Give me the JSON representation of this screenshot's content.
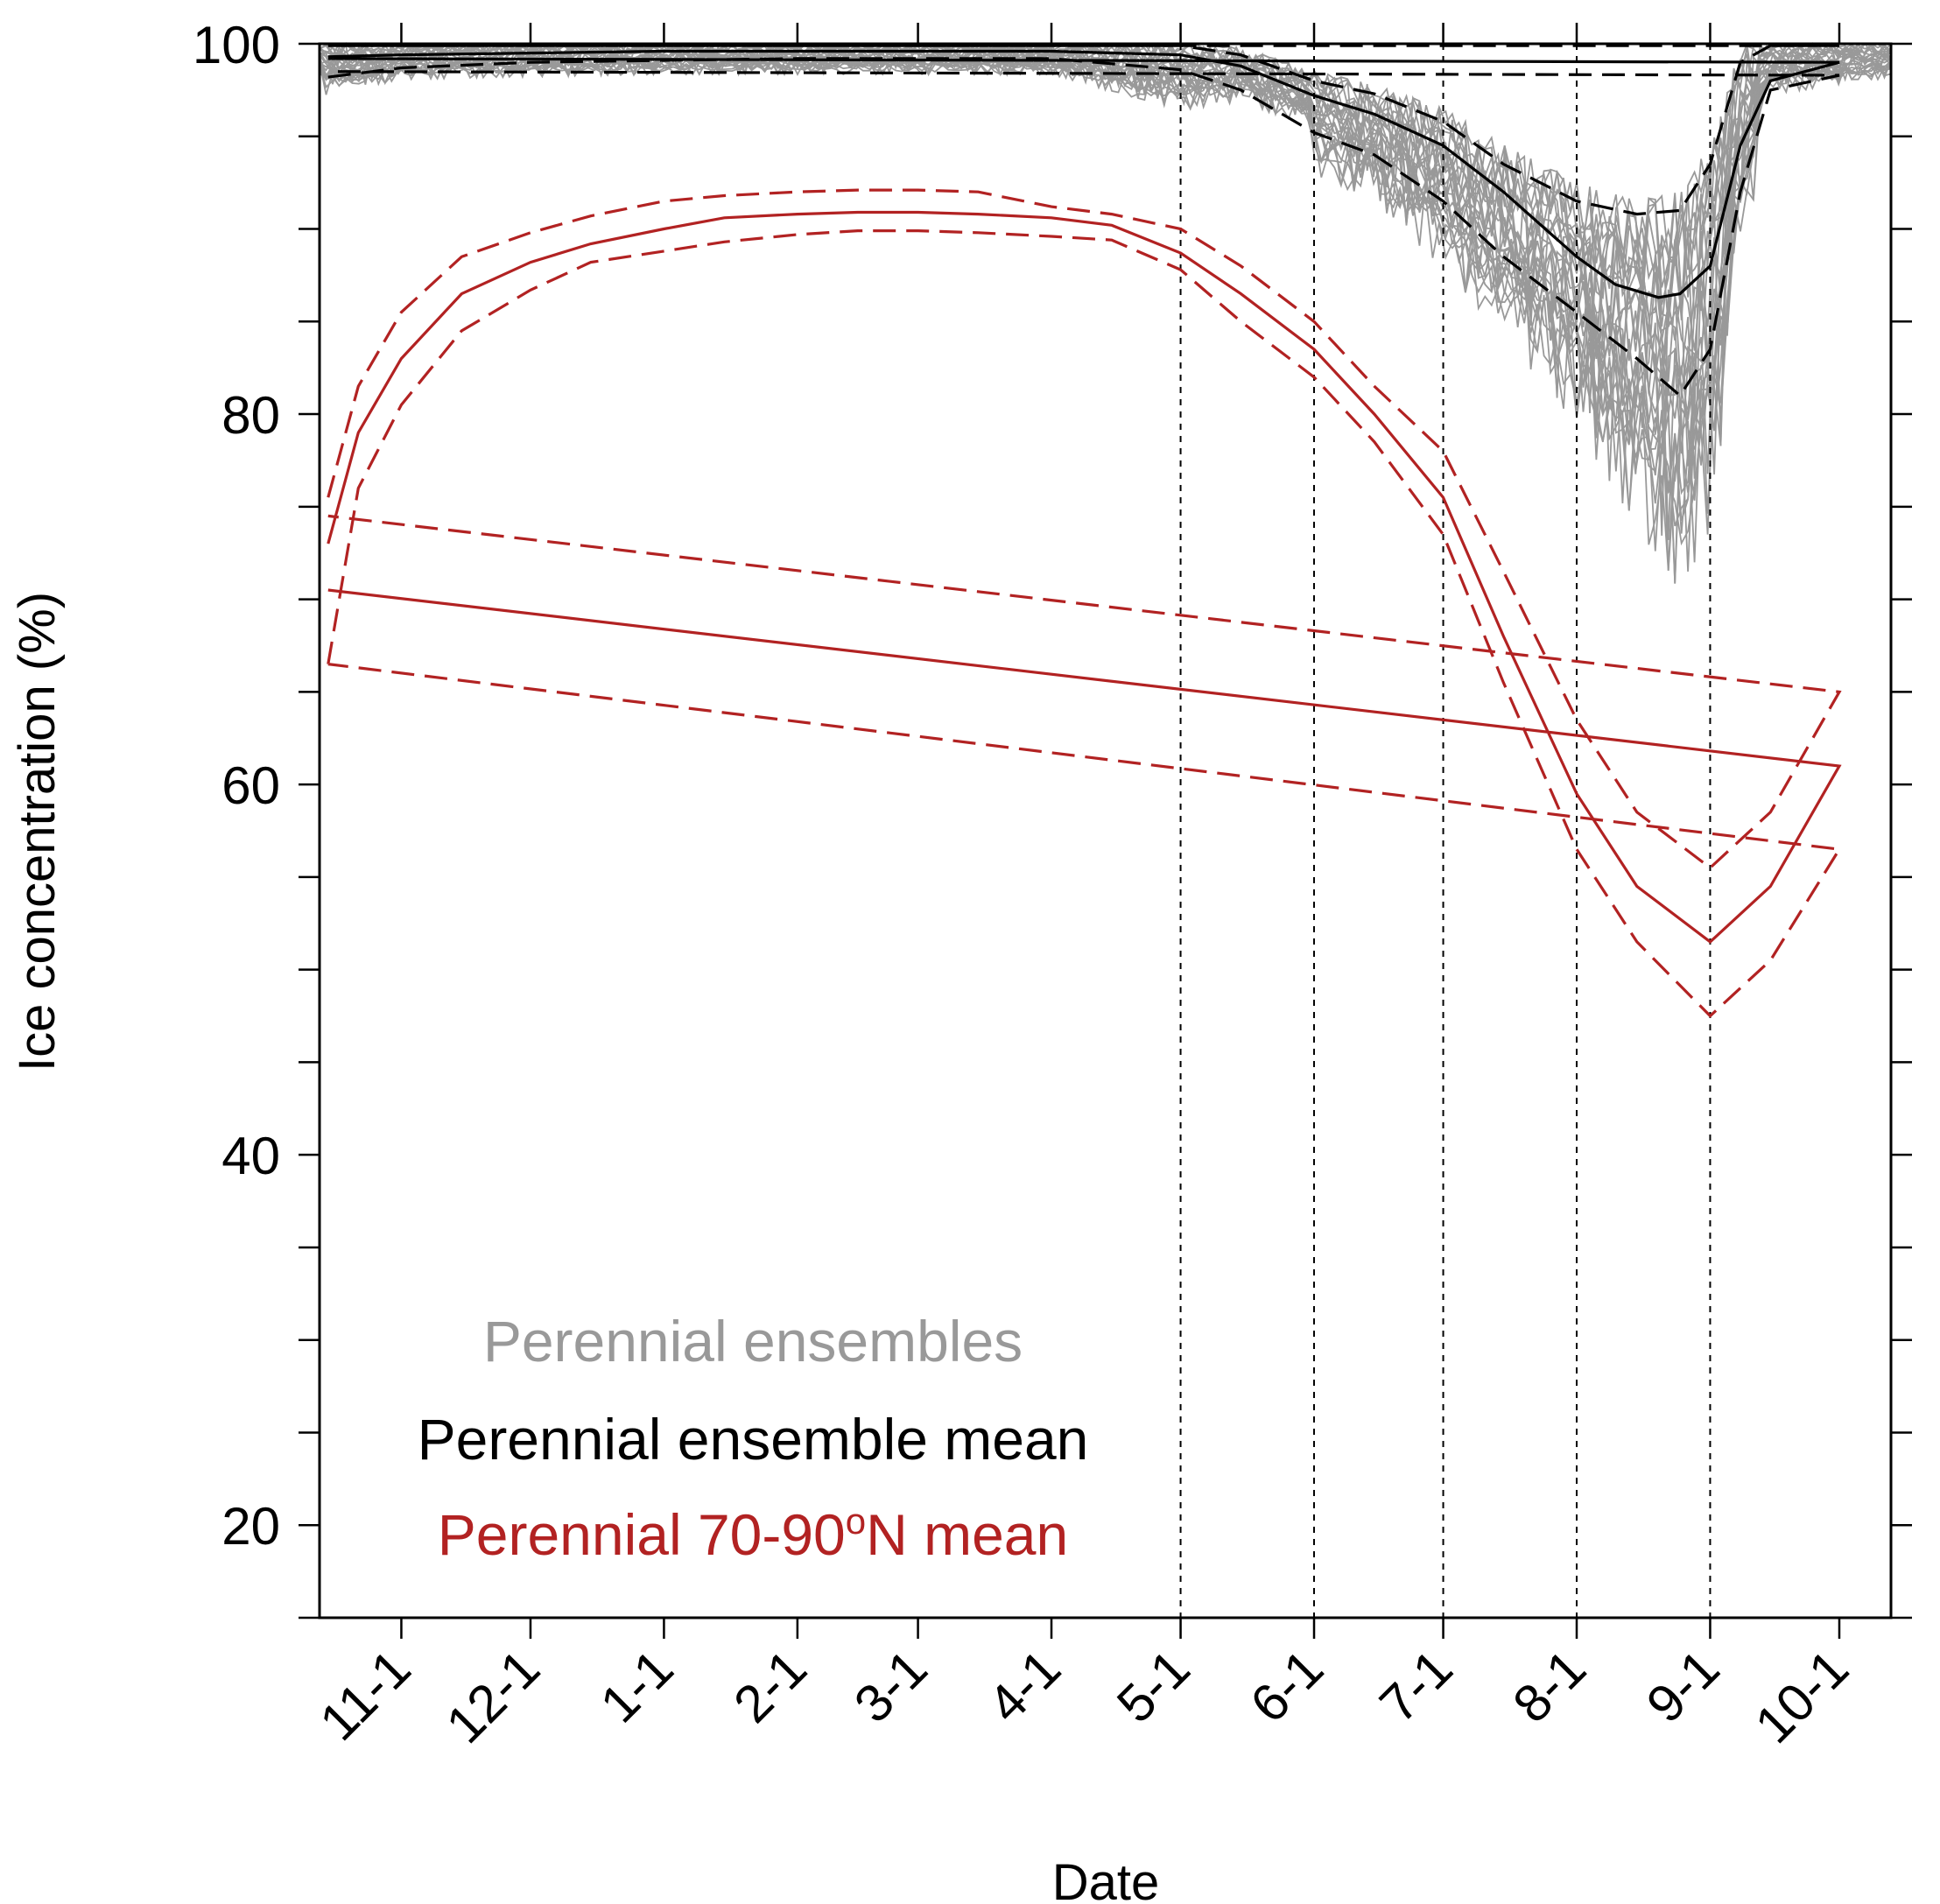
{
  "chart_data": {
    "type": "line",
    "xlabel": "Date",
    "ylabel": "Ice concentration (%)",
    "x_tick_labels": [
      "11-1",
      "12-1",
      "1-1",
      "2-1",
      "3-1",
      "4-1",
      "5-1",
      "6-1",
      "7-1",
      "8-1",
      "9-1",
      "10-1"
    ],
    "ylim": [
      15,
      100
    ],
    "y_ticks_major": [
      20,
      40,
      60,
      80,
      100
    ],
    "y_ticks_minor_step": 5,
    "reference_lines_at": [
      "5-1",
      "6-1",
      "7-1",
      "8-1",
      "9-1"
    ],
    "grid": false,
    "legend_placement": "bottom-center (inside plot, text-only)",
    "legend": [
      {
        "label": "Perennial ensembles",
        "color": "#999999"
      },
      {
        "label": "Perennial ensemble mean",
        "color": "#000000"
      },
      {
        "label": "Perennial 70-90",
        "superscript": "o",
        "suffix": "N mean",
        "color": "#b22222"
      }
    ],
    "series": [
      {
        "name": "Perennial 70-90°N mean",
        "color": "#b22222",
        "style": "solid",
        "x": [
          "10-15",
          "10-22",
          "11-1",
          "11-15",
          "12-1",
          "12-15",
          "1-1",
          "1-15",
          "2-1",
          "2-15",
          "3-1",
          "3-15",
          "4-1",
          "4-15",
          "5-1",
          "5-15",
          "6-1",
          "6-15",
          "7-1",
          "7-15",
          "8-1",
          "8-15",
          "9-1",
          "9-15",
          "10-1",
          "10-15"
        ],
        "values": [
          73,
          79,
          83,
          86.5,
          88.2,
          89.2,
          90.0,
          90.6,
          90.8,
          90.9,
          90.9,
          90.8,
          90.6,
          90.2,
          88.7,
          86.5,
          83.5,
          80.0,
          75.5,
          68.0,
          59.5,
          54.5,
          51.5,
          54.5,
          61.0,
          70.5
        ]
      },
      {
        "name": "Perennial 70-90°N mean upper bound",
        "color": "#b22222",
        "style": "dashed",
        "x": [
          "10-15",
          "10-22",
          "11-1",
          "11-15",
          "12-1",
          "12-15",
          "1-1",
          "1-15",
          "2-1",
          "2-15",
          "3-1",
          "3-15",
          "4-1",
          "4-15",
          "5-1",
          "5-15",
          "6-1",
          "6-15",
          "7-1",
          "7-15",
          "8-1",
          "8-15",
          "9-1",
          "9-15",
          "10-1",
          "10-15"
        ],
        "values": [
          75.5,
          81.5,
          85.5,
          88.5,
          89.8,
          90.7,
          91.5,
          91.8,
          92.0,
          92.1,
          92.1,
          92.0,
          91.2,
          90.8,
          90.0,
          88.0,
          85.0,
          81.5,
          78.0,
          71.5,
          63.5,
          58.5,
          55.5,
          58.5,
          65.0,
          74.5
        ]
      },
      {
        "name": "Perennial 70-90°N mean lower bound",
        "color": "#b22222",
        "style": "dashed",
        "x": [
          "10-15",
          "10-22",
          "11-1",
          "11-15",
          "12-1",
          "12-15",
          "1-1",
          "1-15",
          "2-1",
          "2-15",
          "3-1",
          "3-15",
          "4-1",
          "4-15",
          "5-1",
          "5-15",
          "6-1",
          "6-15",
          "7-1",
          "7-15",
          "8-1",
          "8-15",
          "9-1",
          "9-15",
          "10-1",
          "10-15"
        ],
        "values": [
          66.5,
          76.0,
          80.5,
          84.5,
          86.7,
          88.2,
          88.8,
          89.3,
          89.7,
          89.9,
          89.9,
          89.8,
          89.6,
          89.4,
          87.8,
          85.0,
          82.0,
          78.5,
          73.5,
          65.5,
          56.5,
          51.5,
          47.5,
          50.5,
          56.5,
          66.5
        ]
      },
      {
        "name": "Perennial ensemble mean",
        "color": "#000000",
        "style": "solid",
        "x": [
          "10-15",
          "11-1",
          "12-1",
          "1-1",
          "2-1",
          "3-1",
          "4-1",
          "5-1",
          "5-15",
          "6-1",
          "6-15",
          "7-1",
          "7-15",
          "8-1",
          "8-10",
          "8-20",
          "8-25",
          "9-1",
          "9-8",
          "9-15",
          "10-1",
          "10-15"
        ],
        "values": [
          99.3,
          99.4,
          99.5,
          99.6,
          99.6,
          99.6,
          99.6,
          99.4,
          98.8,
          97.2,
          96.2,
          94.5,
          92.0,
          88.5,
          87.0,
          86.3,
          86.5,
          88.0,
          94.5,
          98.0,
          99.0,
          99.2
        ]
      },
      {
        "name": "Perennial ensemble mean upper bound",
        "color": "#000000",
        "style": "dashed",
        "x": [
          "10-15",
          "11-1",
          "12-1",
          "1-1",
          "2-1",
          "3-1",
          "4-1",
          "5-1",
          "5-15",
          "6-1",
          "6-15",
          "7-1",
          "7-15",
          "8-1",
          "8-15",
          "8-25",
          "9-1",
          "9-8",
          "9-15",
          "10-1",
          "10-15"
        ],
        "values": [
          99.9,
          99.9,
          99.9,
          99.9,
          99.9,
          99.9,
          99.9,
          99.9,
          99.4,
          98.0,
          97.3,
          95.8,
          93.5,
          91.5,
          90.8,
          91.0,
          93.5,
          99.0,
          99.9,
          99.9,
          99.9
        ]
      },
      {
        "name": "Perennial ensemble mean lower bound",
        "color": "#000000",
        "style": "dashed",
        "x": [
          "10-15",
          "11-1",
          "12-1",
          "1-1",
          "2-1",
          "3-1",
          "4-1",
          "5-1",
          "5-15",
          "6-1",
          "6-15",
          "7-1",
          "7-15",
          "8-1",
          "8-15",
          "8-25",
          "9-1",
          "9-8",
          "9-15",
          "10-1",
          "10-15"
        ],
        "values": [
          98.2,
          98.7,
          99.0,
          99.1,
          99.2,
          99.2,
          99.2,
          98.6,
          97.5,
          95.2,
          94.0,
          91.5,
          88.5,
          85.5,
          83.0,
          81.0,
          83.5,
          92.0,
          97.5,
          98.3,
          98.5
        ]
      },
      {
        "name": "Perennial ensembles (spread)",
        "color": "#999999",
        "style": "thin solid, many members",
        "x": [
          "10-15",
          "11-1",
          "12-1",
          "1-1",
          "2-1",
          "3-1",
          "4-1",
          "5-1",
          "5-15",
          "6-1",
          "6-15",
          "7-1",
          "7-15",
          "8-1",
          "8-15",
          "8-25",
          "9-1",
          "9-8",
          "9-15",
          "10-1",
          "10-15"
        ],
        "upper": [
          100,
          100,
          100,
          100,
          100,
          100,
          100,
          100,
          99.8,
          98.5,
          97.8,
          96.5,
          94.5,
          92.5,
          91.5,
          92.0,
          94.5,
          100,
          100,
          100,
          100
        ],
        "lower": [
          95,
          96.5,
          96.8,
          97.0,
          97.0,
          97.0,
          97.0,
          93.5,
          94.5,
          93.0,
          91.5,
          88.0,
          84.0,
          79.5,
          74.0,
          70.5,
          74.0,
          89.0,
          95.0,
          96.0,
          96.5
        ]
      }
    ]
  }
}
